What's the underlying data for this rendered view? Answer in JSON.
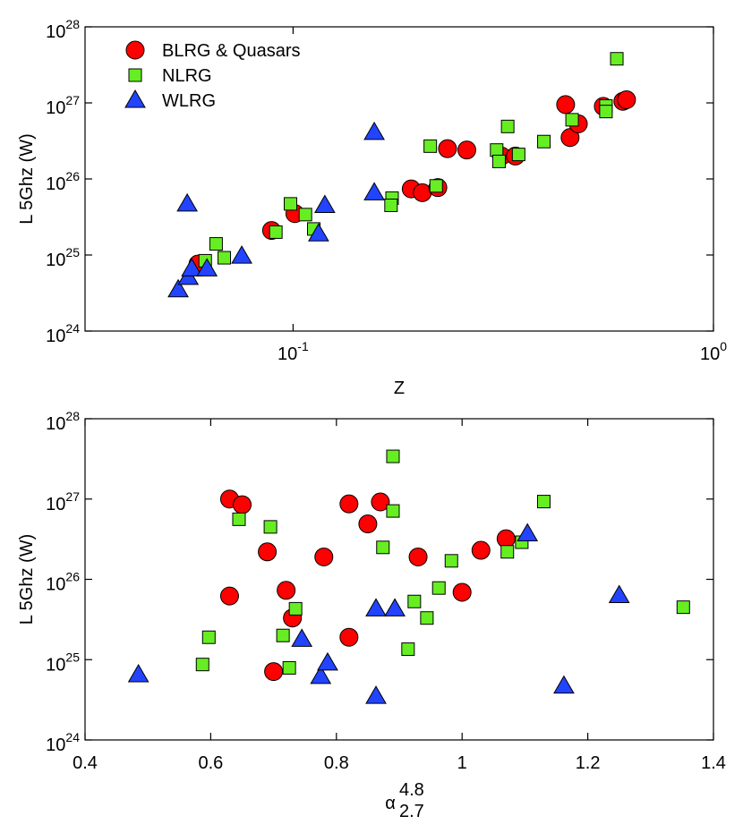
{
  "chart_data": [
    {
      "type": "scatter",
      "x_label": "Z",
      "y_label": "L 5Ghz (W)",
      "log_x": true,
      "log_y": true,
      "legend": "upper left",
      "xlim": [
        0.032,
        1
      ],
      "ylim": [
        1e+24,
        1e+28
      ],
      "xticks": [
        {
          "value": 0.1,
          "label": "10",
          "exponent": "-1"
        },
        {
          "value": 1,
          "label": "10",
          "exponent": "0"
        }
      ],
      "yticks": [
        {
          "value": 1e+24,
          "label": "10",
          "exponent": "24"
        },
        {
          "value": 1e+25,
          "label": "10",
          "exponent": "25"
        },
        {
          "value": 1e+26,
          "label": "10",
          "exponent": "26"
        },
        {
          "value": 1e+27,
          "label": "10",
          "exponent": "27"
        },
        {
          "value": 1e+28,
          "label": "10",
          "exponent": "28"
        }
      ],
      "series": [
        {
          "name": "BLRG & Quasars",
          "color": "#ff0000",
          "marker": "circle",
          "x": [
            0.0594,
            0.0889,
            0.101,
            0.191,
            0.203,
            0.221,
            0.233,
            0.259,
            0.313,
            0.338,
            0.445,
            0.456,
            0.477,
            0.547,
            0.609,
            0.621
          ],
          "values": [
            7.6e+24,
            2.1e+25,
            3.5e+25,
            7.4e+25,
            6.6e+25,
            7.7e+25,
            2.5e+26,
            2.4e+26,
            2e+26,
            2e+26,
            9.5e+26,
            3.5e+26,
            5.3e+26,
            9e+26,
            1.05e+27,
            1.1e+27
          ]
        },
        {
          "name": "NLRG",
          "color": "#66ee22",
          "marker": "square",
          "x": [
            0.589,
            0.324,
            0.212,
            0.305,
            0.309,
            0.344,
            0.395,
            0.461,
            0.555,
            0.555,
            0.219,
            0.172,
            0.171,
            0.0986,
            0.107,
            0.112,
            0.091,
            0.0656,
            0.0686,
            0.0618
          ],
          "values": [
            3.8e+27,
            4.9e+26,
            2.7e+26,
            2.4e+26,
            1.7e+26,
            2.1e+26,
            3.1e+26,
            6e+26,
            9.1e+26,
            7.7e+26,
            8.1e+25,
            5.6e+25,
            4.5e+25,
            4.7e+25,
            3.4e+25,
            2.2e+25,
            2e+25,
            1.4e+25,
            9.2e+24,
            8.4e+24
          ]
        },
        {
          "name": "WLRG",
          "color": "#2244ff",
          "marker": "triangle",
          "x": [
            0.056,
            0.156,
            0.0533,
            0.0563,
            0.0574,
            0.0624,
            0.0755,
            0.119,
            0.115,
            0.156
          ],
          "values": [
            4.7e+25,
            4.1e+26,
            3.5e+24,
            5.1e+24,
            6.6e+24,
            6.6e+24,
            9.7e+24,
            4.5e+25,
            1.9e+25,
            6.6e+25
          ]
        }
      ]
    },
    {
      "type": "scatter",
      "x_label": {
        "symbol": "α",
        "sup": "4.8",
        "sub": "2.7"
      },
      "y_label": "L 5Ghz (W)",
      "log_x": false,
      "log_y": true,
      "xlim": [
        0.4,
        1.4
      ],
      "ylim": [
        1e+24,
        1e+28
      ],
      "xticks": [
        0.4,
        0.6,
        0.8,
        1,
        1.2,
        1.4
      ],
      "yticks": [
        {
          "value": 1e+24,
          "label": "10",
          "exponent": "24"
        },
        {
          "value": 1e+25,
          "label": "10",
          "exponent": "25"
        },
        {
          "value": 1e+26,
          "label": "10",
          "exponent": "26"
        },
        {
          "value": 1e+27,
          "label": "10",
          "exponent": "27"
        },
        {
          "value": 1e+28,
          "label": "10",
          "exponent": "28"
        }
      ],
      "series": [
        {
          "color": "#ff0000",
          "marker": "circle",
          "x": [
            0.63,
            0.65,
            0.69,
            0.63,
            0.72,
            0.73,
            0.7,
            0.78,
            0.82,
            0.82,
            0.87,
            0.85,
            0.93,
            1.0,
            1.03,
            1.07
          ],
          "values": [
            1e+27,
            8.5e+26,
            2.2e+26,
            6.2e+25,
            7.3e+25,
            3.3e+25,
            7.1e+24,
            1.9e+26,
            1.9e+25,
            8.7e+26,
            9.2e+26,
            4.9e+26,
            1.9e+26,
            6.9e+25,
            2.3e+26,
            3.2e+26
          ]
        },
        {
          "color": "#66ee22",
          "marker": "square",
          "x": [
            0.89,
            1.13,
            0.645,
            0.695,
            0.89,
            0.874,
            1.072,
            1.095,
            0.983,
            0.963,
            0.924,
            0.944,
            0.715,
            0.735,
            0.914,
            0.597,
            0.725,
            0.587,
            1.352
          ],
          "values": [
            3.4e+27,
            9.3e+26,
            5.6e+26,
            4.5e+26,
            7.1e+26,
            2.5e+26,
            2.2e+26,
            2.9e+26,
            1.7e+26,
            7.8e+25,
            5.3e+25,
            3.3e+25,
            2e+25,
            4.3e+25,
            1.35e+25,
            1.9e+25,
            7.9e+24,
            8.7e+24,
            4.5e+25
          ]
        },
        {
          "color": "#2244ff",
          "marker": "triangle",
          "x": [
            0.485,
            0.745,
            0.775,
            0.786,
            0.863,
            0.893,
            0.863,
            1.104,
            1.162,
            1.25
          ],
          "values": [
            6.5e+24,
            1.8e+25,
            6.2e+24,
            9.1e+24,
            4.3e+25,
            4.3e+25,
            3.5e+24,
            3.7e+26,
            4.7e+24,
            6.3e+25
          ]
        }
      ]
    }
  ]
}
